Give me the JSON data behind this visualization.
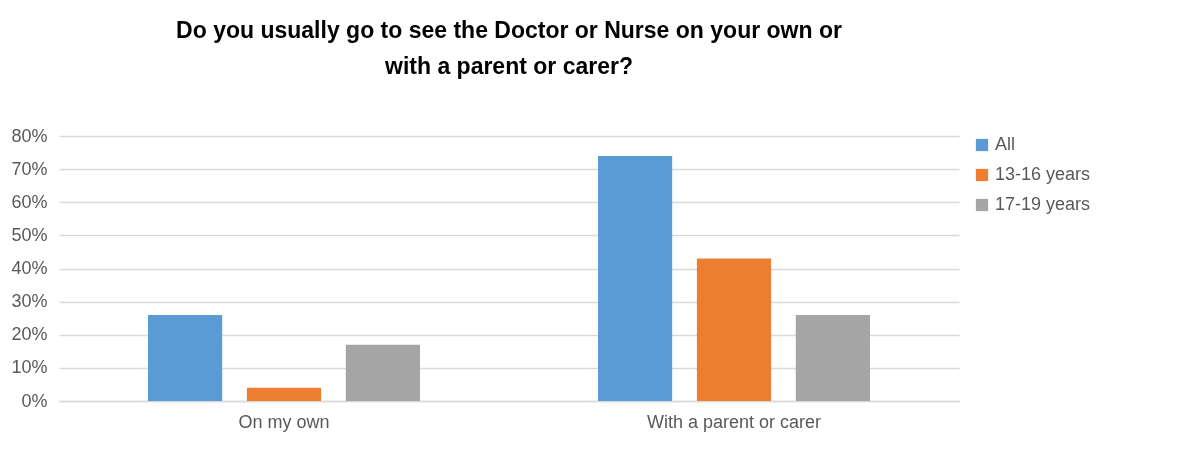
{
  "chart_data": {
    "type": "bar",
    "title": "Do you usually go to see the Doctor or Nurse on your own or with a parent or carer?",
    "categories": [
      "On my own",
      "With a parent or carer"
    ],
    "series": [
      {
        "name": "All",
        "color": "#5b9bd5",
        "values": [
          26,
          74
        ]
      },
      {
        "name": "13-16 years",
        "color": "#ed7d31",
        "values": [
          4,
          43
        ]
      },
      {
        "name": "17-19 years",
        "color": "#a5a5a5",
        "values": [
          17,
          26
        ]
      }
    ],
    "ylim": [
      0,
      80
    ],
    "yticks": [
      {
        "value": 0,
        "label": "0%"
      },
      {
        "value": 10,
        "label": "10%"
      },
      {
        "value": 20,
        "label": "20%"
      },
      {
        "value": 30,
        "label": "30%"
      },
      {
        "value": 40,
        "label": "40%"
      },
      {
        "value": 50,
        "label": "50%"
      },
      {
        "value": 60,
        "label": "60%"
      },
      {
        "value": 70,
        "label": "70%"
      },
      {
        "value": 80,
        "label": "80%"
      }
    ],
    "grid": "y",
    "legend": "right"
  }
}
